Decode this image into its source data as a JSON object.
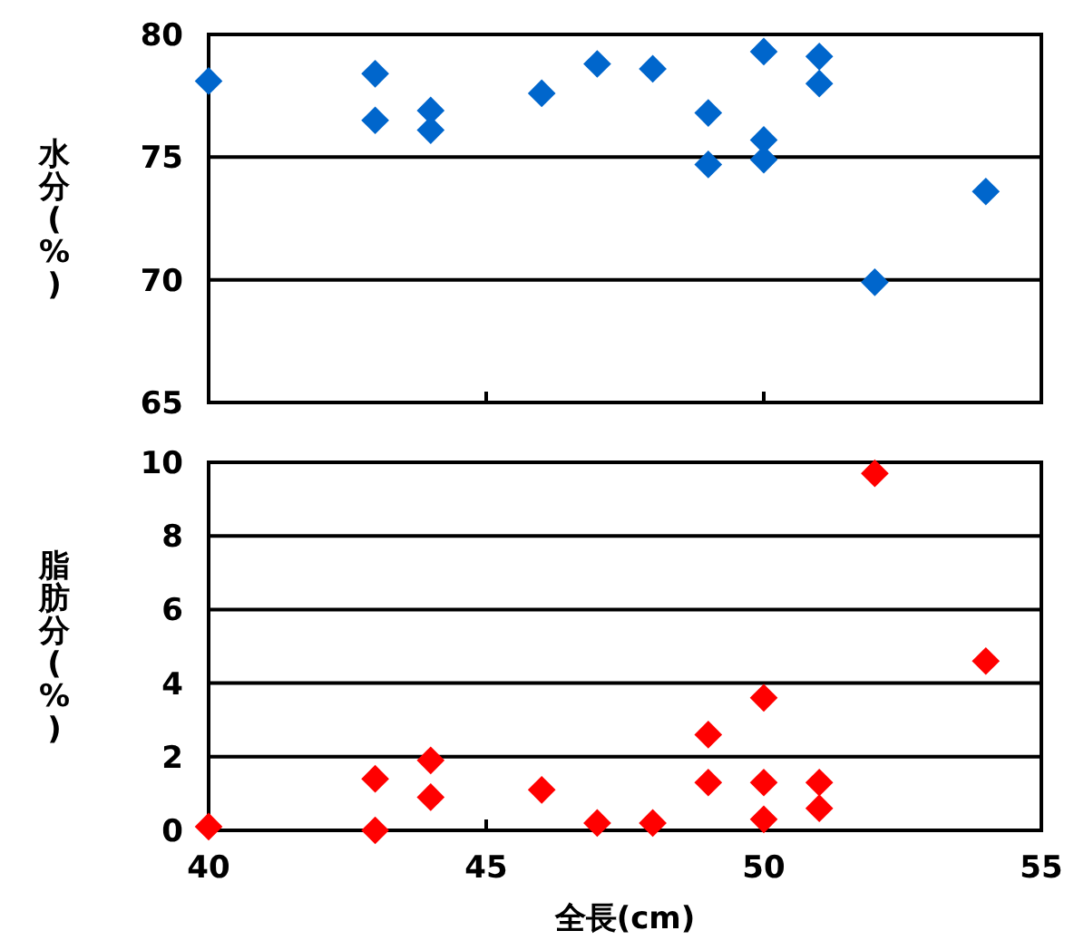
{
  "chart_data": [
    {
      "type": "scatter",
      "ylabel": "水分(%)",
      "x": [
        40,
        43,
        43,
        44,
        44,
        46,
        47,
        48,
        49,
        49,
        50,
        50,
        50,
        51,
        51,
        52,
        54
      ],
      "series": [
        {
          "color": "#0066cc",
          "values": [
            78.1,
            78.4,
            76.5,
            76.9,
            76.1,
            77.6,
            78.8,
            78.6,
            76.8,
            74.7,
            79.3,
            75.7,
            74.9,
            79.1,
            78.0,
            69.9,
            73.6
          ]
        }
      ],
      "xlim": [
        40,
        55
      ],
      "xticks": [
        40,
        45,
        50,
        55
      ],
      "ylim": [
        65,
        80
      ],
      "yticks": [
        65,
        70,
        75,
        80
      ],
      "grid": "y",
      "marker": "diamond",
      "tick_labels": "y"
    },
    {
      "type": "scatter",
      "ylabel": "脂肪分(%)",
      "xlabel": "全長(cm)",
      "x": [
        40,
        43,
        43,
        44,
        44,
        46,
        47,
        48,
        49,
        49,
        50,
        50,
        50,
        51,
        51,
        52,
        54
      ],
      "series": [
        {
          "color": "#ff0000",
          "values": [
            0.1,
            1.4,
            0,
            1.9,
            0.9,
            1.1,
            0.2,
            0.2,
            2.6,
            1.3,
            3.6,
            1.3,
            0.3,
            1.3,
            0.6,
            9.7,
            4.6
          ]
        }
      ],
      "xlim": [
        40,
        55
      ],
      "xticks": [
        40,
        45,
        50,
        55
      ],
      "ylim": [
        0,
        10
      ],
      "yticks": [
        0,
        2,
        4,
        6,
        8,
        10
      ],
      "grid": "y",
      "marker": "diamond"
    }
  ]
}
